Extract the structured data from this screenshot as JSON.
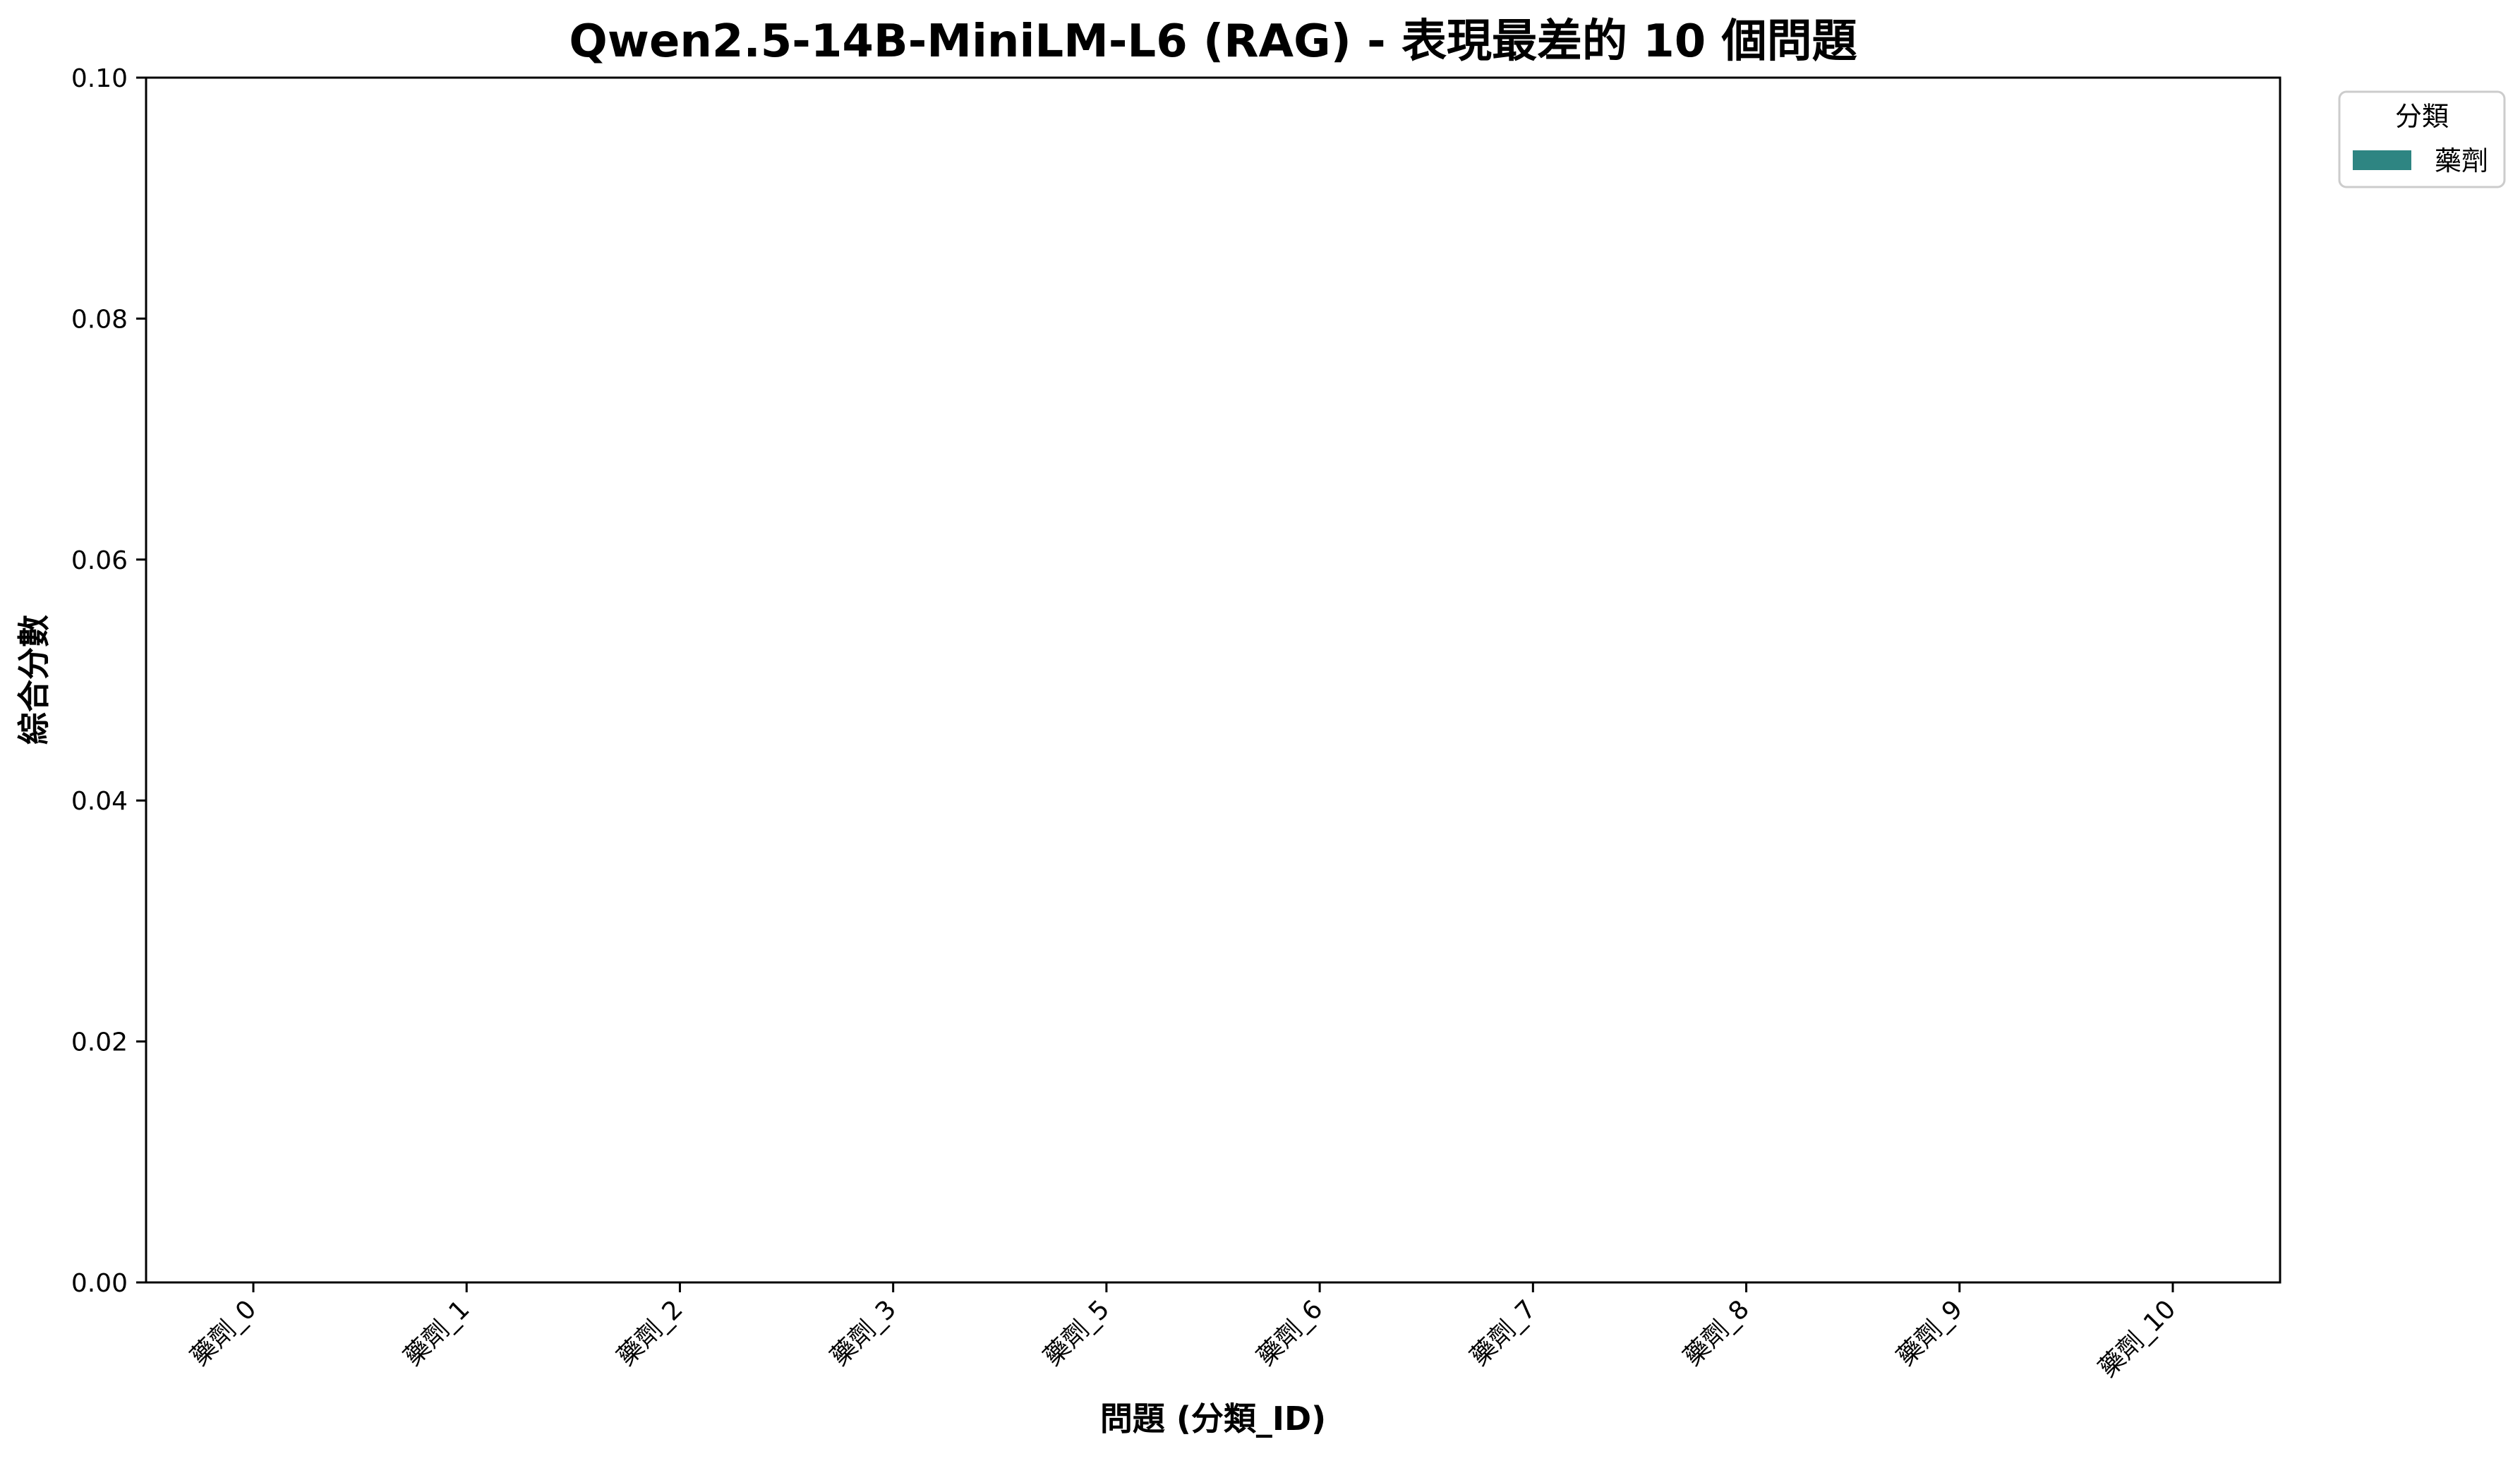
{
  "chart_data": {
    "type": "bar",
    "title": "Qwen2.5-14B-MiniLM-L6 (RAG) - 表現最差的 10 個問題",
    "xlabel": "問題 (分類_ID)",
    "ylabel": "綜合分數",
    "categories": [
      "藥劑_0",
      "藥劑_1",
      "藥劑_2",
      "藥劑_3",
      "藥劑_5",
      "藥劑_6",
      "藥劑_7",
      "藥劑_8",
      "藥劑_9",
      "藥劑_10"
    ],
    "series": [
      {
        "name": "藥劑",
        "color": "#2e8582",
        "values": [
          0,
          0,
          0,
          0,
          0,
          0,
          0,
          0,
          0,
          0
        ]
      }
    ],
    "ylim": [
      0,
      0.1
    ],
    "yticks": [
      "0.00",
      "0.02",
      "0.04",
      "0.06",
      "0.08",
      "0.10"
    ],
    "legend": {
      "title": "分類",
      "placement": "outside-top-right"
    },
    "grid": false
  }
}
